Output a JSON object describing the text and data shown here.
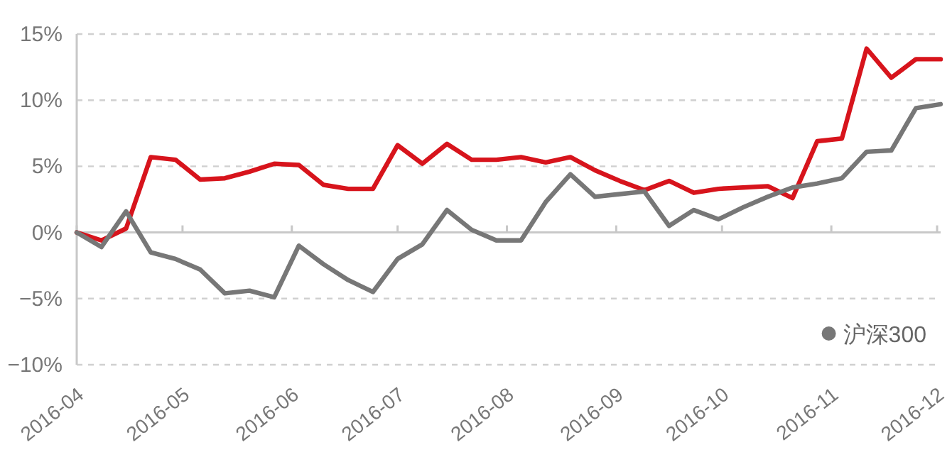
{
  "chart_data": {
    "type": "line",
    "x": [
      "2016-04-01",
      "2016-04-08",
      "2016-04-15",
      "2016-04-22",
      "2016-04-29",
      "2016-05-06",
      "2016-05-13",
      "2016-05-20",
      "2016-05-27",
      "2016-06-03",
      "2016-06-10",
      "2016-06-17",
      "2016-06-24",
      "2016-07-01",
      "2016-07-08",
      "2016-07-15",
      "2016-07-22",
      "2016-07-29",
      "2016-08-05",
      "2016-08-12",
      "2016-08-19",
      "2016-08-26",
      "2016-09-02",
      "2016-09-09",
      "2016-09-16",
      "2016-09-23",
      "2016-09-30",
      "2016-10-07",
      "2016-10-14",
      "2016-10-21",
      "2016-10-28",
      "2016-11-04",
      "2016-11-11",
      "2016-11-18",
      "2016-11-25",
      "2016-12-02"
    ],
    "series": [
      {
        "color": "#d7141c",
        "values": [
          0,
          -0.6,
          0.3,
          5.7,
          5.5,
          4.0,
          4.1,
          4.6,
          5.2,
          5.1,
          3.6,
          3.3,
          3.3,
          6.6,
          5.2,
          6.7,
          5.5,
          5.5,
          5.7,
          5.3,
          5.7,
          4.7,
          3.9,
          3.2,
          3.9,
          3.0,
          3.3,
          3.4,
          3.5,
          2.6,
          6.9,
          7.1,
          13.9,
          11.7,
          13.1,
          13.1
        ]
      },
      {
        "name": "沪深300",
        "color": "#777777",
        "values": [
          0,
          -1.1,
          1.6,
          -1.5,
          -2.0,
          -2.8,
          -4.6,
          -4.4,
          -4.9,
          -1.0,
          -2.4,
          -3.6,
          -4.5,
          -2.0,
          -0.9,
          1.7,
          0.2,
          -0.6,
          -0.6,
          2.3,
          4.4,
          2.7,
          2.9,
          3.1,
          0.5,
          1.7,
          1.0,
          1.9,
          2.7,
          3.4,
          3.7,
          4.1,
          6.1,
          6.2,
          9.4,
          9.7
        ]
      }
    ],
    "xlim": [
      "2016-04-01",
      "2016-12-02"
    ],
    "xticks": [
      {
        "value": "2016-04-01",
        "label": "2016-04"
      },
      {
        "value": "2016-05-01",
        "label": "2016-05"
      },
      {
        "value": "2016-06-01",
        "label": "2016-06"
      },
      {
        "value": "2016-07-01",
        "label": "2016-07"
      },
      {
        "value": "2016-08-01",
        "label": "2016-08"
      },
      {
        "value": "2016-09-01",
        "label": "2016-09"
      },
      {
        "value": "2016-10-01",
        "label": "2016-10"
      },
      {
        "value": "2016-11-01",
        "label": "2016-11"
      },
      {
        "value": "2016-12-01",
        "label": "2016-12"
      }
    ],
    "ylim": [
      -10,
      15
    ],
    "yticks": [
      {
        "value": -10,
        "label": "−10%"
      },
      {
        "value": -5,
        "label": "−5%"
      },
      {
        "value": 0,
        "label": "0%"
      },
      {
        "value": 5,
        "label": "5%"
      },
      {
        "value": 10,
        "label": "10%"
      },
      {
        "value": 15,
        "label": "15%"
      }
    ],
    "grid": "y",
    "legend": "bottom right"
  }
}
